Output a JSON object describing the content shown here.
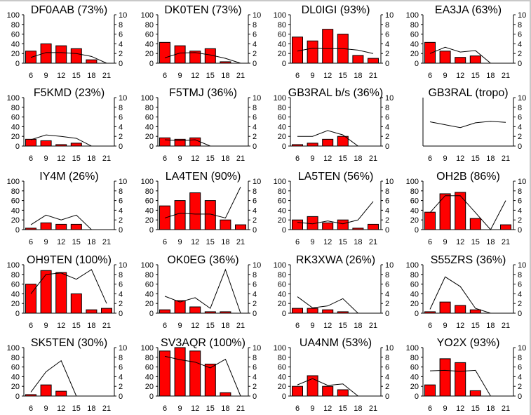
{
  "chart_data": {
    "type": "bar",
    "layout": "grid 5 rows x 4 columns",
    "x_ticks": [
      "6",
      "9",
      "12",
      "15",
      "18",
      "21"
    ],
    "left_axis": {
      "ylim": [
        0,
        100
      ],
      "ticks": [
        "0",
        "20",
        "40",
        "60",
        "80",
        "100"
      ]
    },
    "right_axis": {
      "ylim": [
        0,
        10
      ],
      "ticks": [
        "0",
        "2",
        "4",
        "6",
        "8",
        "10"
      ]
    },
    "bar_color": "#ff0000",
    "line_color": "#000000",
    "panels": [
      {
        "title": "DF0AAB (73%)",
        "bars": [
          25,
          40,
          36,
          30,
          7,
          0
        ],
        "line": [
          1.2,
          2.2,
          2.2,
          2.0,
          1.4,
          0
        ]
      },
      {
        "title": "DK0TEN (73%)",
        "bars": [
          43,
          36,
          25,
          30,
          3,
          0
        ],
        "line": [
          1.1,
          2.1,
          2.2,
          1.7,
          1.0,
          0
        ]
      },
      {
        "title": "DL0IGI (93%)",
        "bars": [
          54,
          46,
          70,
          60,
          16,
          10
        ],
        "line": [
          2.5,
          3.1,
          3.0,
          3.0,
          2.7,
          2.0
        ]
      },
      {
        "title": "EA3JA (63%)",
        "bars": [
          43,
          25,
          12,
          15,
          0,
          0
        ],
        "line": [
          2.0,
          3.3,
          2.3,
          2.6,
          0,
          null
        ]
      },
      {
        "title": "F5KMD (23%)",
        "bars": [
          14,
          11,
          3,
          6,
          0,
          0
        ],
        "line": [
          1.3,
          2.3,
          2.0,
          1.6,
          0,
          null
        ]
      },
      {
        "title": "F5TMJ (36%)",
        "bars": [
          17,
          14,
          17,
          0,
          0,
          0
        ],
        "line": [
          1.3,
          1.1,
          1.3,
          0,
          null,
          null
        ]
      },
      {
        "title": "GB3RAL b/s (36%)",
        "bars": [
          3,
          6,
          14,
          20,
          0,
          0
        ],
        "line": [
          2.0,
          2.0,
          3.2,
          2.3,
          0,
          null
        ]
      },
      {
        "title": "GB3RAL (tropo)",
        "bars": null,
        "line": [
          5.0,
          4.4,
          3.8,
          4.8,
          5.1,
          4.9
        ]
      },
      {
        "title": "IY4M (26%)",
        "bars": [
          3,
          14,
          11,
          11,
          0,
          0
        ],
        "line": [
          1.0,
          3.0,
          2.0,
          3.0,
          0,
          null
        ]
      },
      {
        "title": "LA4TEN (90%)",
        "bars": [
          49,
          60,
          76,
          60,
          20,
          10
        ],
        "line": [
          2.4,
          3.4,
          3.2,
          3.2,
          2.4,
          8.8
        ]
      },
      {
        "title": "LA5TEN (56%)",
        "bars": [
          20,
          27,
          14,
          20,
          3,
          11
        ],
        "line": [
          1.5,
          1.2,
          1.8,
          1.2,
          2.0,
          5.8
        ]
      },
      {
        "title": "OH2B (86%)",
        "bars": [
          36,
          74,
          77,
          23,
          0,
          10
        ],
        "line": [
          3.5,
          7.0,
          7.0,
          3.5,
          0,
          6.0
        ]
      },
      {
        "title": "OH9TEN (100%)",
        "bars": [
          60,
          88,
          84,
          40,
          7,
          10
        ],
        "line": [
          4.0,
          8.0,
          8.3,
          7.0,
          9.0,
          2.0
        ]
      },
      {
        "title": "OK0EG (36%)",
        "bars": [
          7,
          26,
          13,
          3,
          3,
          0
        ],
        "line": [
          3.5,
          2.3,
          3.2,
          1.0,
          9.0,
          0
        ]
      },
      {
        "title": "RK3XWA (26%)",
        "bars": [
          10,
          10,
          7,
          3,
          0,
          0
        ],
        "line": [
          3.4,
          1.1,
          1.5,
          3.0,
          0,
          null
        ]
      },
      {
        "title": "S55ZRS (36%)",
        "bars": [
          3,
          23,
          16,
          7,
          0,
          0
        ],
        "line": [
          0.8,
          7.5,
          5.5,
          1.0,
          0,
          null
        ]
      },
      {
        "title": "SK5TEN (30%)",
        "bars": [
          3,
          23,
          10,
          0,
          0,
          0
        ],
        "line": [
          0.8,
          5.0,
          7.3,
          0,
          null,
          null
        ]
      },
      {
        "title": "SV3AQR (100%)",
        "bars": [
          93,
          100,
          93,
          66,
          7,
          0
        ],
        "line": [
          8.2,
          7.5,
          7.0,
          5.8,
          7.6,
          0
        ]
      },
      {
        "title": "UA4NM (53%)",
        "bars": [
          20,
          42,
          20,
          13,
          0,
          0
        ],
        "line": [
          2.3,
          3.6,
          2.2,
          2.5,
          0,
          null
        ]
      },
      {
        "title": "YO2X (93%)",
        "bars": [
          23,
          77,
          69,
          11,
          0,
          0
        ],
        "line": [
          5.2,
          5.3,
          5.1,
          5.3,
          0,
          0
        ]
      }
    ]
  }
}
